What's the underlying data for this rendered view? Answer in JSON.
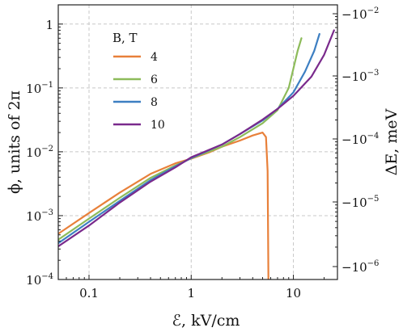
{
  "chart_data": {
    "type": "line",
    "xlabel": "ℰ, kV/cm",
    "ylabel": "ϕ, units of 2π",
    "y2label": "ΔE, meV",
    "xscale": "log",
    "yscale": "log",
    "xlim": [
      0.05,
      27
    ],
    "ylim": [
      0.0001,
      2
    ],
    "x_ticks": [
      {
        "value": 0.1,
        "label": "0.1"
      },
      {
        "value": 1,
        "label": "1"
      },
      {
        "value": 10,
        "label": "10"
      }
    ],
    "y_ticks": [
      {
        "value": 0.0001,
        "base": "10",
        "exp": "−4"
      },
      {
        "value": 0.001,
        "base": "10",
        "exp": "−3"
      },
      {
        "value": 0.01,
        "base": "10",
        "exp": "−2"
      },
      {
        "value": 0.1,
        "base": "10",
        "exp": "−1"
      },
      {
        "value": 1,
        "base": "1",
        "exp": ""
      }
    ],
    "y2_ticks": [
      {
        "value": 0.01,
        "base": "−10",
        "exp": "−2"
      },
      {
        "value": 0.001,
        "base": "−10",
        "exp": "−3"
      },
      {
        "value": 0.0001,
        "base": "−10",
        "exp": "−4"
      },
      {
        "value": 1e-05,
        "base": "−10",
        "exp": "−5"
      },
      {
        "value": 1e-06,
        "base": "−10",
        "exp": "−6"
      }
    ],
    "grid": true,
    "legend": {
      "title": "B, T",
      "position": "upper-left"
    },
    "series": [
      {
        "name": "4",
        "color": "#e8803a",
        "x": [
          0.05,
          0.1,
          0.2,
          0.4,
          0.7,
          1.0,
          1.5,
          2.0,
          3.0,
          4.0,
          5.0,
          5.4,
          5.6,
          5.7
        ],
        "y": [
          0.00052,
          0.0011,
          0.0023,
          0.0045,
          0.0066,
          0.0078,
          0.0098,
          0.012,
          0.015,
          0.018,
          0.02,
          0.017,
          0.005,
          0.0001
        ]
      },
      {
        "name": "6",
        "color": "#8dbb5a",
        "x": [
          0.05,
          0.1,
          0.2,
          0.4,
          0.7,
          1.0,
          2.0,
          3.0,
          5.0,
          7.0,
          9.0,
          10.0,
          11.0,
          12.0
        ],
        "y": [
          0.00042,
          0.0009,
          0.0019,
          0.0039,
          0.0061,
          0.0079,
          0.012,
          0.017,
          0.028,
          0.045,
          0.1,
          0.2,
          0.38,
          0.6
        ]
      },
      {
        "name": "8",
        "color": "#3d7fc2",
        "x": [
          0.05,
          0.1,
          0.2,
          0.4,
          0.7,
          1.0,
          2.0,
          3.0,
          5.0,
          7.0,
          10.0,
          13.0,
          16.0,
          18.0
        ],
        "y": [
          0.00037,
          0.0008,
          0.0017,
          0.0036,
          0.0059,
          0.008,
          0.013,
          0.019,
          0.031,
          0.047,
          0.085,
          0.18,
          0.38,
          0.7
        ]
      },
      {
        "name": "10",
        "color": "#7a2a8c",
        "x": [
          0.05,
          0.1,
          0.2,
          0.4,
          0.7,
          1.0,
          2.0,
          3.0,
          5.0,
          7.0,
          10.0,
          15.0,
          20.0,
          25.0
        ],
        "y": [
          0.00033,
          0.0007,
          0.0016,
          0.0034,
          0.0057,
          0.0082,
          0.013,
          0.019,
          0.032,
          0.047,
          0.075,
          0.15,
          0.33,
          0.8
        ]
      }
    ]
  }
}
